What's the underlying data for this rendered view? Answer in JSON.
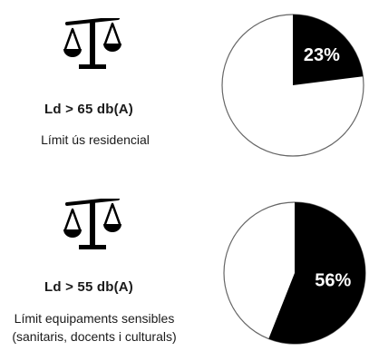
{
  "chart_data": [
    {
      "type": "pie",
      "title": "",
      "threshold_label": "Ld > 65 db(A)",
      "description": [
        "Límit ús residencial"
      ],
      "value": 23,
      "value_label": "23%",
      "colors": {
        "highlight": "#000000",
        "remainder": "#ffffff",
        "outline": "#666666"
      }
    },
    {
      "type": "pie",
      "title": "",
      "threshold_label": "Ld > 55 db(A)",
      "description": [
        "Límit equipaments sensibles",
        "(sanitaris, docents i culturals)"
      ],
      "value": 56,
      "value_label": "56%",
      "colors": {
        "highlight": "#000000",
        "remainder": "#ffffff",
        "outline": "#666666"
      }
    }
  ],
  "icons": {
    "scale": "balance-scale-icon"
  }
}
